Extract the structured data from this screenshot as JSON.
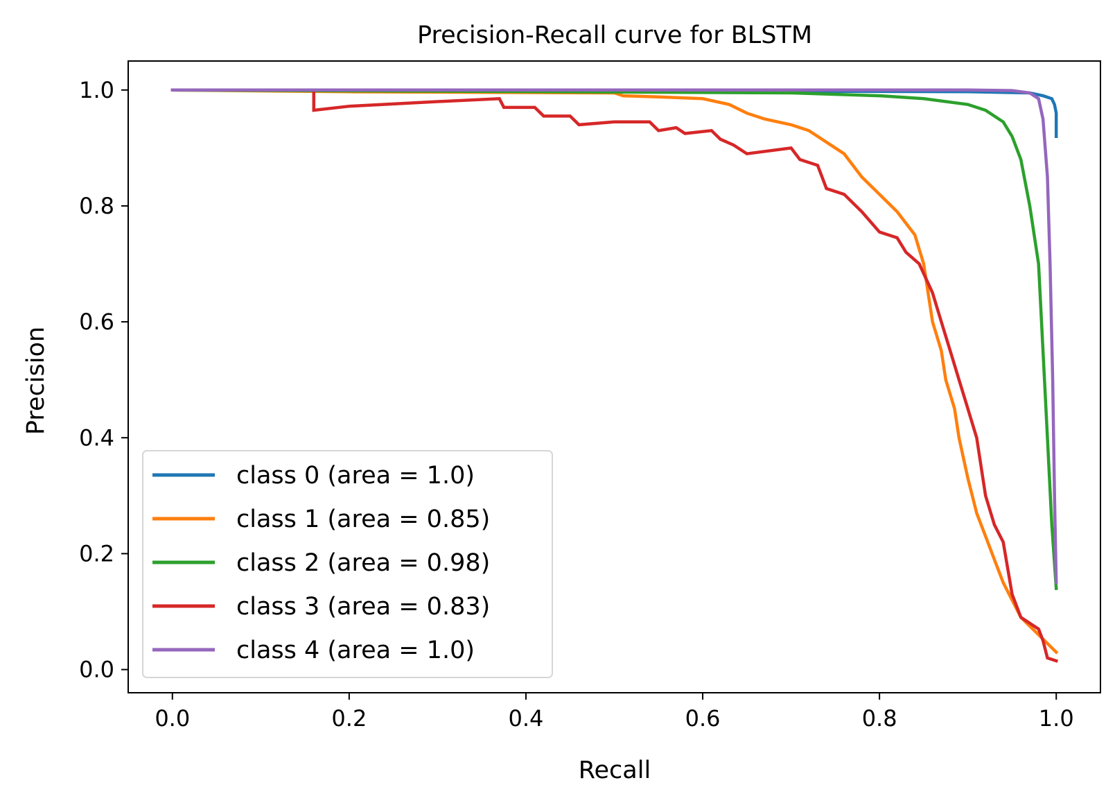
{
  "chart_data": {
    "type": "line",
    "title": "Precision-Recall curve for BLSTM",
    "xlabel": "Recall",
    "ylabel": "Precision",
    "xlim": [
      -0.05,
      1.05
    ],
    "ylim": [
      -0.04,
      1.05
    ],
    "xticks": [
      0.0,
      0.2,
      0.4,
      0.6,
      0.8,
      1.0
    ],
    "yticks": [
      0.0,
      0.2,
      0.4,
      0.6,
      0.8,
      1.0
    ],
    "xtick_labels": [
      "0.0",
      "0.2",
      "0.4",
      "0.6",
      "0.8",
      "1.0"
    ],
    "ytick_labels": [
      "0.0",
      "0.2",
      "0.4",
      "0.6",
      "0.8",
      "1.0"
    ],
    "grid": false,
    "legend_position": "lower-left",
    "series": [
      {
        "name": "class 0 (area = 1.0)",
        "color": "#1f77b4",
        "points": [
          [
            0.0,
            1.0
          ],
          [
            0.5,
            0.999
          ],
          [
            0.9,
            0.997
          ],
          [
            0.97,
            0.995
          ],
          [
            0.985,
            0.99
          ],
          [
            0.995,
            0.985
          ],
          [
            0.998,
            0.975
          ],
          [
            1.0,
            0.96
          ],
          [
            1.0,
            0.92
          ]
        ]
      },
      {
        "name": "class 1 (area = 0.85)",
        "color": "#ff7f0e",
        "points": [
          [
            0.0,
            1.0
          ],
          [
            0.2,
            0.997
          ],
          [
            0.5,
            0.995
          ],
          [
            0.51,
            0.99
          ],
          [
            0.55,
            0.988
          ],
          [
            0.6,
            0.985
          ],
          [
            0.63,
            0.975
          ],
          [
            0.65,
            0.96
          ],
          [
            0.67,
            0.95
          ],
          [
            0.7,
            0.94
          ],
          [
            0.72,
            0.93
          ],
          [
            0.74,
            0.91
          ],
          [
            0.76,
            0.89
          ],
          [
            0.78,
            0.85
          ],
          [
            0.8,
            0.82
          ],
          [
            0.82,
            0.79
          ],
          [
            0.83,
            0.77
          ],
          [
            0.84,
            0.75
          ],
          [
            0.85,
            0.7
          ],
          [
            0.86,
            0.6
          ],
          [
            0.87,
            0.55
          ],
          [
            0.875,
            0.5
          ],
          [
            0.885,
            0.45
          ],
          [
            0.89,
            0.4
          ],
          [
            0.9,
            0.33
          ],
          [
            0.91,
            0.27
          ],
          [
            0.92,
            0.23
          ],
          [
            0.93,
            0.19
          ],
          [
            0.94,
            0.15
          ],
          [
            0.95,
            0.12
          ],
          [
            0.96,
            0.09
          ],
          [
            0.98,
            0.06
          ],
          [
            1.0,
            0.03
          ]
        ]
      },
      {
        "name": "class 2 (area = 0.98)",
        "color": "#2ca02c",
        "points": [
          [
            0.0,
            1.0
          ],
          [
            0.3,
            0.998
          ],
          [
            0.7,
            0.995
          ],
          [
            0.8,
            0.99
          ],
          [
            0.85,
            0.985
          ],
          [
            0.9,
            0.975
          ],
          [
            0.92,
            0.965
          ],
          [
            0.94,
            0.945
          ],
          [
            0.95,
            0.92
          ],
          [
            0.96,
            0.88
          ],
          [
            0.97,
            0.8
          ],
          [
            0.98,
            0.7
          ],
          [
            0.985,
            0.55
          ],
          [
            0.99,
            0.4
          ],
          [
            0.995,
            0.25
          ],
          [
            1.0,
            0.14
          ]
        ]
      },
      {
        "name": "class 3 (area = 0.83)",
        "color": "#d62728",
        "points": [
          [
            0.0,
            1.0
          ],
          [
            0.16,
            1.0
          ],
          [
            0.16,
            0.965
          ],
          [
            0.2,
            0.972
          ],
          [
            0.3,
            0.98
          ],
          [
            0.37,
            0.985
          ],
          [
            0.375,
            0.97
          ],
          [
            0.41,
            0.97
          ],
          [
            0.42,
            0.955
          ],
          [
            0.45,
            0.955
          ],
          [
            0.46,
            0.94
          ],
          [
            0.5,
            0.945
          ],
          [
            0.54,
            0.945
          ],
          [
            0.55,
            0.93
          ],
          [
            0.57,
            0.935
          ],
          [
            0.58,
            0.925
          ],
          [
            0.61,
            0.93
          ],
          [
            0.62,
            0.915
          ],
          [
            0.635,
            0.905
          ],
          [
            0.65,
            0.89
          ],
          [
            0.7,
            0.9
          ],
          [
            0.71,
            0.88
          ],
          [
            0.73,
            0.87
          ],
          [
            0.74,
            0.83
          ],
          [
            0.76,
            0.82
          ],
          [
            0.78,
            0.79
          ],
          [
            0.8,
            0.755
          ],
          [
            0.82,
            0.745
          ],
          [
            0.83,
            0.72
          ],
          [
            0.845,
            0.7
          ],
          [
            0.86,
            0.65
          ],
          [
            0.87,
            0.6
          ],
          [
            0.88,
            0.55
          ],
          [
            0.89,
            0.5
          ],
          [
            0.9,
            0.45
          ],
          [
            0.91,
            0.4
          ],
          [
            0.92,
            0.3
          ],
          [
            0.93,
            0.25
          ],
          [
            0.94,
            0.22
          ],
          [
            0.95,
            0.13
          ],
          [
            0.96,
            0.09
          ],
          [
            0.98,
            0.07
          ],
          [
            0.985,
            0.05
          ],
          [
            0.99,
            0.02
          ],
          [
            1.0,
            0.015
          ]
        ]
      },
      {
        "name": "class 4 (area = 1.0)",
        "color": "#9467bd",
        "points": [
          [
            0.0,
            1.0
          ],
          [
            0.5,
            1.0
          ],
          [
            0.9,
            1.0
          ],
          [
            0.95,
            0.999
          ],
          [
            0.97,
            0.995
          ],
          [
            0.98,
            0.985
          ],
          [
            0.985,
            0.95
          ],
          [
            0.99,
            0.85
          ],
          [
            0.993,
            0.7
          ],
          [
            0.996,
            0.5
          ],
          [
            0.998,
            0.3
          ],
          [
            1.0,
            0.15
          ]
        ]
      }
    ]
  }
}
